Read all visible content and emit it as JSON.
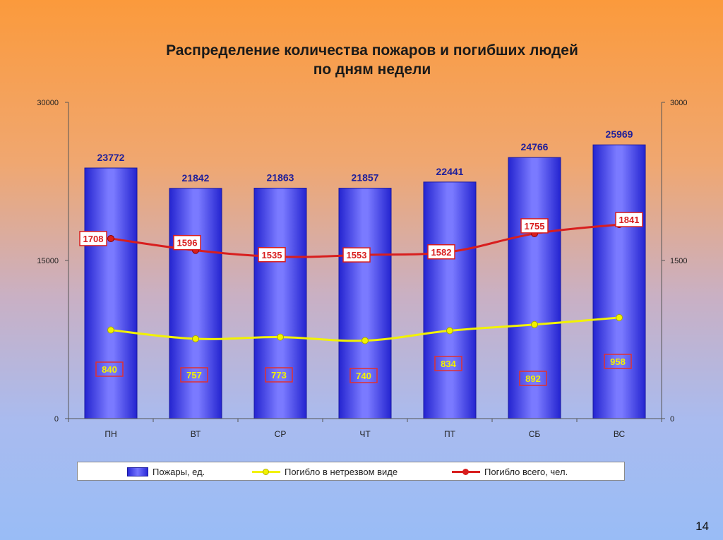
{
  "title": {
    "line1": "Распределение количества пожаров и погибших людей",
    "line2": "по дням недели"
  },
  "legend": {
    "fires": "Пожары, ед.",
    "drunk": "Погибло в нетрезвом виде",
    "total": "Погибло всего, чел."
  },
  "page_number": "14",
  "colors": {
    "bar": "#4a4af0",
    "line_total": "#d81e1e",
    "line_drunk": "#f2f200"
  },
  "chart_data": {
    "type": "bar",
    "categories": [
      "ПН",
      "ВТ",
      "СР",
      "ЧТ",
      "ПТ",
      "СБ",
      "ВС"
    ],
    "series": [
      {
        "name": "Пожары, ед.",
        "type": "bar",
        "axis": "left",
        "values": [
          23772,
          21842,
          21863,
          21857,
          22441,
          24766,
          25969
        ]
      },
      {
        "name": "Погибло в нетрезвом виде",
        "type": "line",
        "axis": "right",
        "values": [
          840,
          757,
          773,
          740,
          834,
          892,
          958
        ]
      },
      {
        "name": "Погибло всего, чел.",
        "type": "line",
        "axis": "right",
        "values": [
          1708,
          1596,
          1535,
          1553,
          1582,
          1755,
          1841
        ]
      }
    ],
    "y_left": {
      "min": 0,
      "max": 30000,
      "ticks": [
        "0",
        "15000",
        "30000"
      ]
    },
    "y_right": {
      "min": 0,
      "max": 3000,
      "ticks": [
        "0",
        "1500",
        "3000"
      ]
    },
    "grid": false,
    "legend_position": "bottom"
  }
}
